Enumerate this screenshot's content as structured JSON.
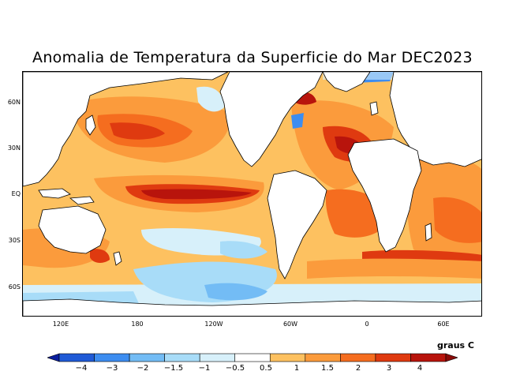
{
  "title": "Anomalia de Temperatura da Superficie do Mar DEC2023",
  "lat_labels": [
    "60N",
    "30N",
    "EQ",
    "30S",
    "60S"
  ],
  "lon_labels": [
    "120E",
    "180",
    "120W",
    "60W",
    "0",
    "60E"
  ],
  "units": "graus C",
  "colorbar": {
    "labels": [
      "−4",
      "−3",
      "−2",
      "−1.5",
      "−1",
      "−0.5",
      "0.5",
      "1",
      "1.5",
      "2",
      "3",
      "4"
    ],
    "colors": [
      "#0a1e9e",
      "#1f5ad6",
      "#3d8df0",
      "#73bcf5",
      "#a8dcf8",
      "#d7f0fa",
      "#ffffff",
      "#fdc160",
      "#fb9b3c",
      "#f56d1f",
      "#df3a10",
      "#b8140c",
      "#8a0a08"
    ]
  },
  "palette": {
    "land": "#ffffff",
    "coast": "#000000",
    "neutral": "#ffffff",
    "warm_weak": "#fdc160",
    "warm_mod": "#fb9b3c",
    "warm_strong": "#f56d1f",
    "warm_vstrong": "#df3a10",
    "hot": "#b8140c",
    "cool_weak": "#d7f0fa",
    "cool_mod": "#a8dcf8",
    "cool_strong": "#73bcf5",
    "cold": "#3d8df0"
  }
}
